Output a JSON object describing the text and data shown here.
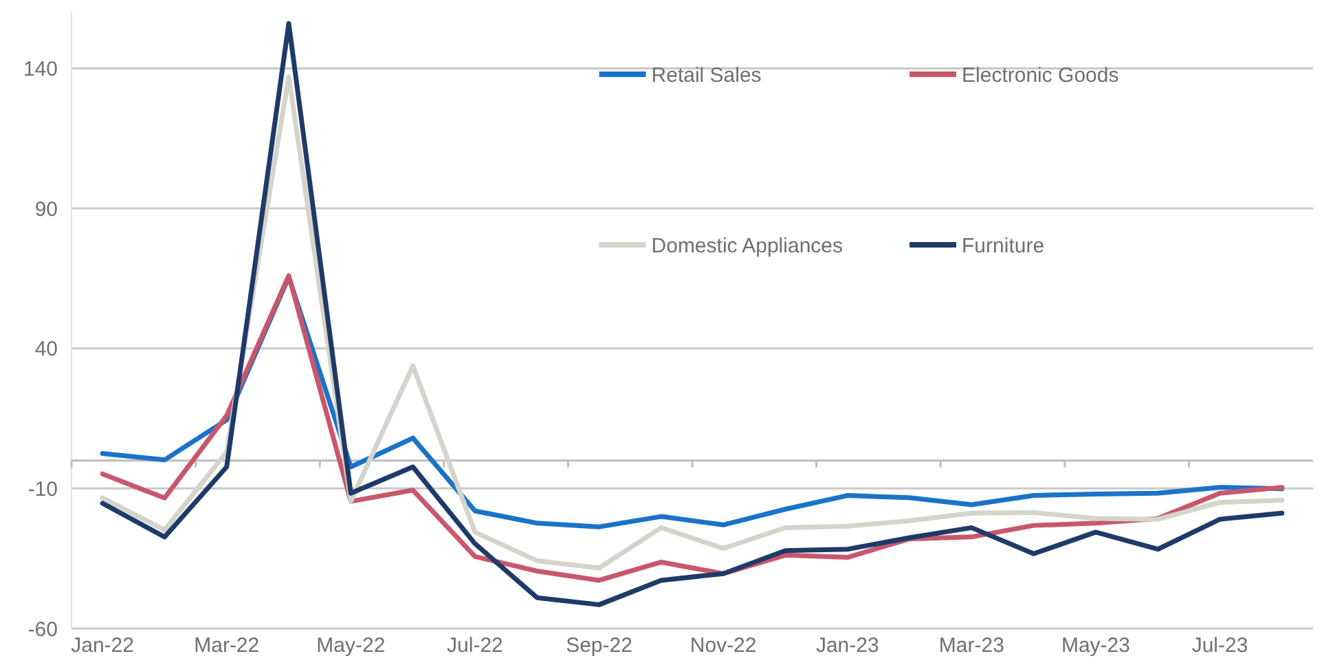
{
  "chart_data": {
    "type": "line",
    "categories": [
      "Jan-22",
      null,
      "Mar-22",
      null,
      "May-22",
      null,
      "Jul-22",
      null,
      "Sep-22",
      null,
      "Nov-22",
      null,
      "Jan-23",
      null,
      "Mar-23",
      null,
      "May-23",
      null,
      "Jul-23",
      null
    ],
    "series": [
      {
        "name": "Retail Sales",
        "color": "#1a73c8",
        "values": [
          2.5,
          0.2,
          14.5,
          65.5,
          -2.3,
          8,
          -18,
          -22.4,
          -23.7,
          -20,
          -23,
          -17.4,
          -12.5,
          -13.3,
          -15.8,
          -12.5,
          -12,
          -11.7,
          -9.6,
          -10.1
        ]
      },
      {
        "name": "Electronic Goods",
        "color": "#c9576b",
        "values": [
          -4.8,
          -13.4,
          16,
          66,
          -14.6,
          -10.6,
          -34.3,
          -39.5,
          -42.8,
          -36.3,
          -40.4,
          -33.8,
          -34.6,
          -28,
          -27.3,
          -23.2,
          -22.4,
          -20.7,
          -11.7,
          -9.6
        ]
      },
      {
        "name": "Domestic Appliances",
        "color": "#d4d4cc",
        "values": [
          -13.4,
          -24.8,
          3,
          137,
          -14.6,
          33.8,
          -25.6,
          -35.8,
          -38.4,
          -24,
          -31.4,
          -24,
          -23.5,
          -21.5,
          -18.8,
          -18.6,
          -20.7,
          -21,
          -15,
          -14.2
        ]
      },
      {
        "name": "Furniture",
        "color": "#1f3a68",
        "values": [
          -15.3,
          -27.3,
          -2.3,
          156,
          -11.7,
          -2.3,
          -29.7,
          -49,
          -51.5,
          -42.8,
          -40.4,
          -32.2,
          -31.7,
          -27.6,
          -24,
          -33.3,
          -25.6,
          -31.7,
          -21,
          -18.8
        ]
      }
    ],
    "ylim": [
      -60,
      160
    ],
    "yticks": [
      -60,
      -10,
      40,
      90,
      140
    ],
    "grid": "y",
    "legend": "top",
    "marker": "none",
    "line_style": "solid"
  }
}
